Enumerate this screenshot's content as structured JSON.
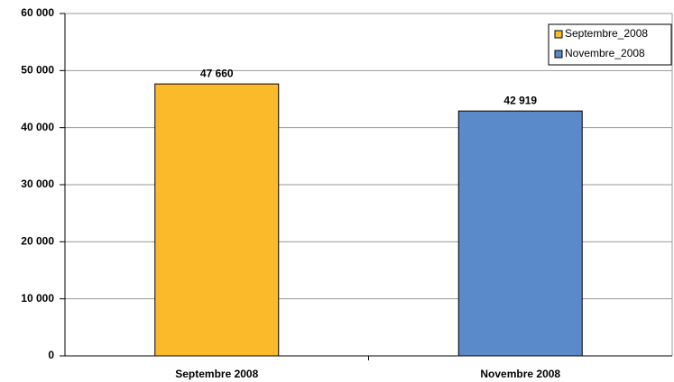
{
  "chart_data": {
    "type": "bar",
    "categories": [
      "Septembre  2008",
      "Novembre  2008"
    ],
    "series": [
      {
        "name": "Septembre_2008",
        "color": "#fbba2a",
        "values": [
          47660,
          null
        ],
        "value_labels": [
          "47 660",
          null
        ]
      },
      {
        "name": "Novembre_2008",
        "color": "#5b8acb",
        "values": [
          null,
          42919
        ],
        "value_labels": [
          null,
          "42 919"
        ]
      }
    ],
    "ylim": [
      0,
      60000
    ],
    "yticks": [
      0,
      {
        "value": 10000,
        "label": "10 000"
      },
      {
        "value": 20000,
        "label": "20 000"
      },
      {
        "value": 30000,
        "label": "30 000"
      },
      {
        "value": 40000,
        "label": "40 000"
      },
      {
        "value": 50000,
        "label": "50 000"
      },
      {
        "value": 60000,
        "label": "60 000"
      }
    ],
    "grid": true,
    "legend": "upper right"
  }
}
